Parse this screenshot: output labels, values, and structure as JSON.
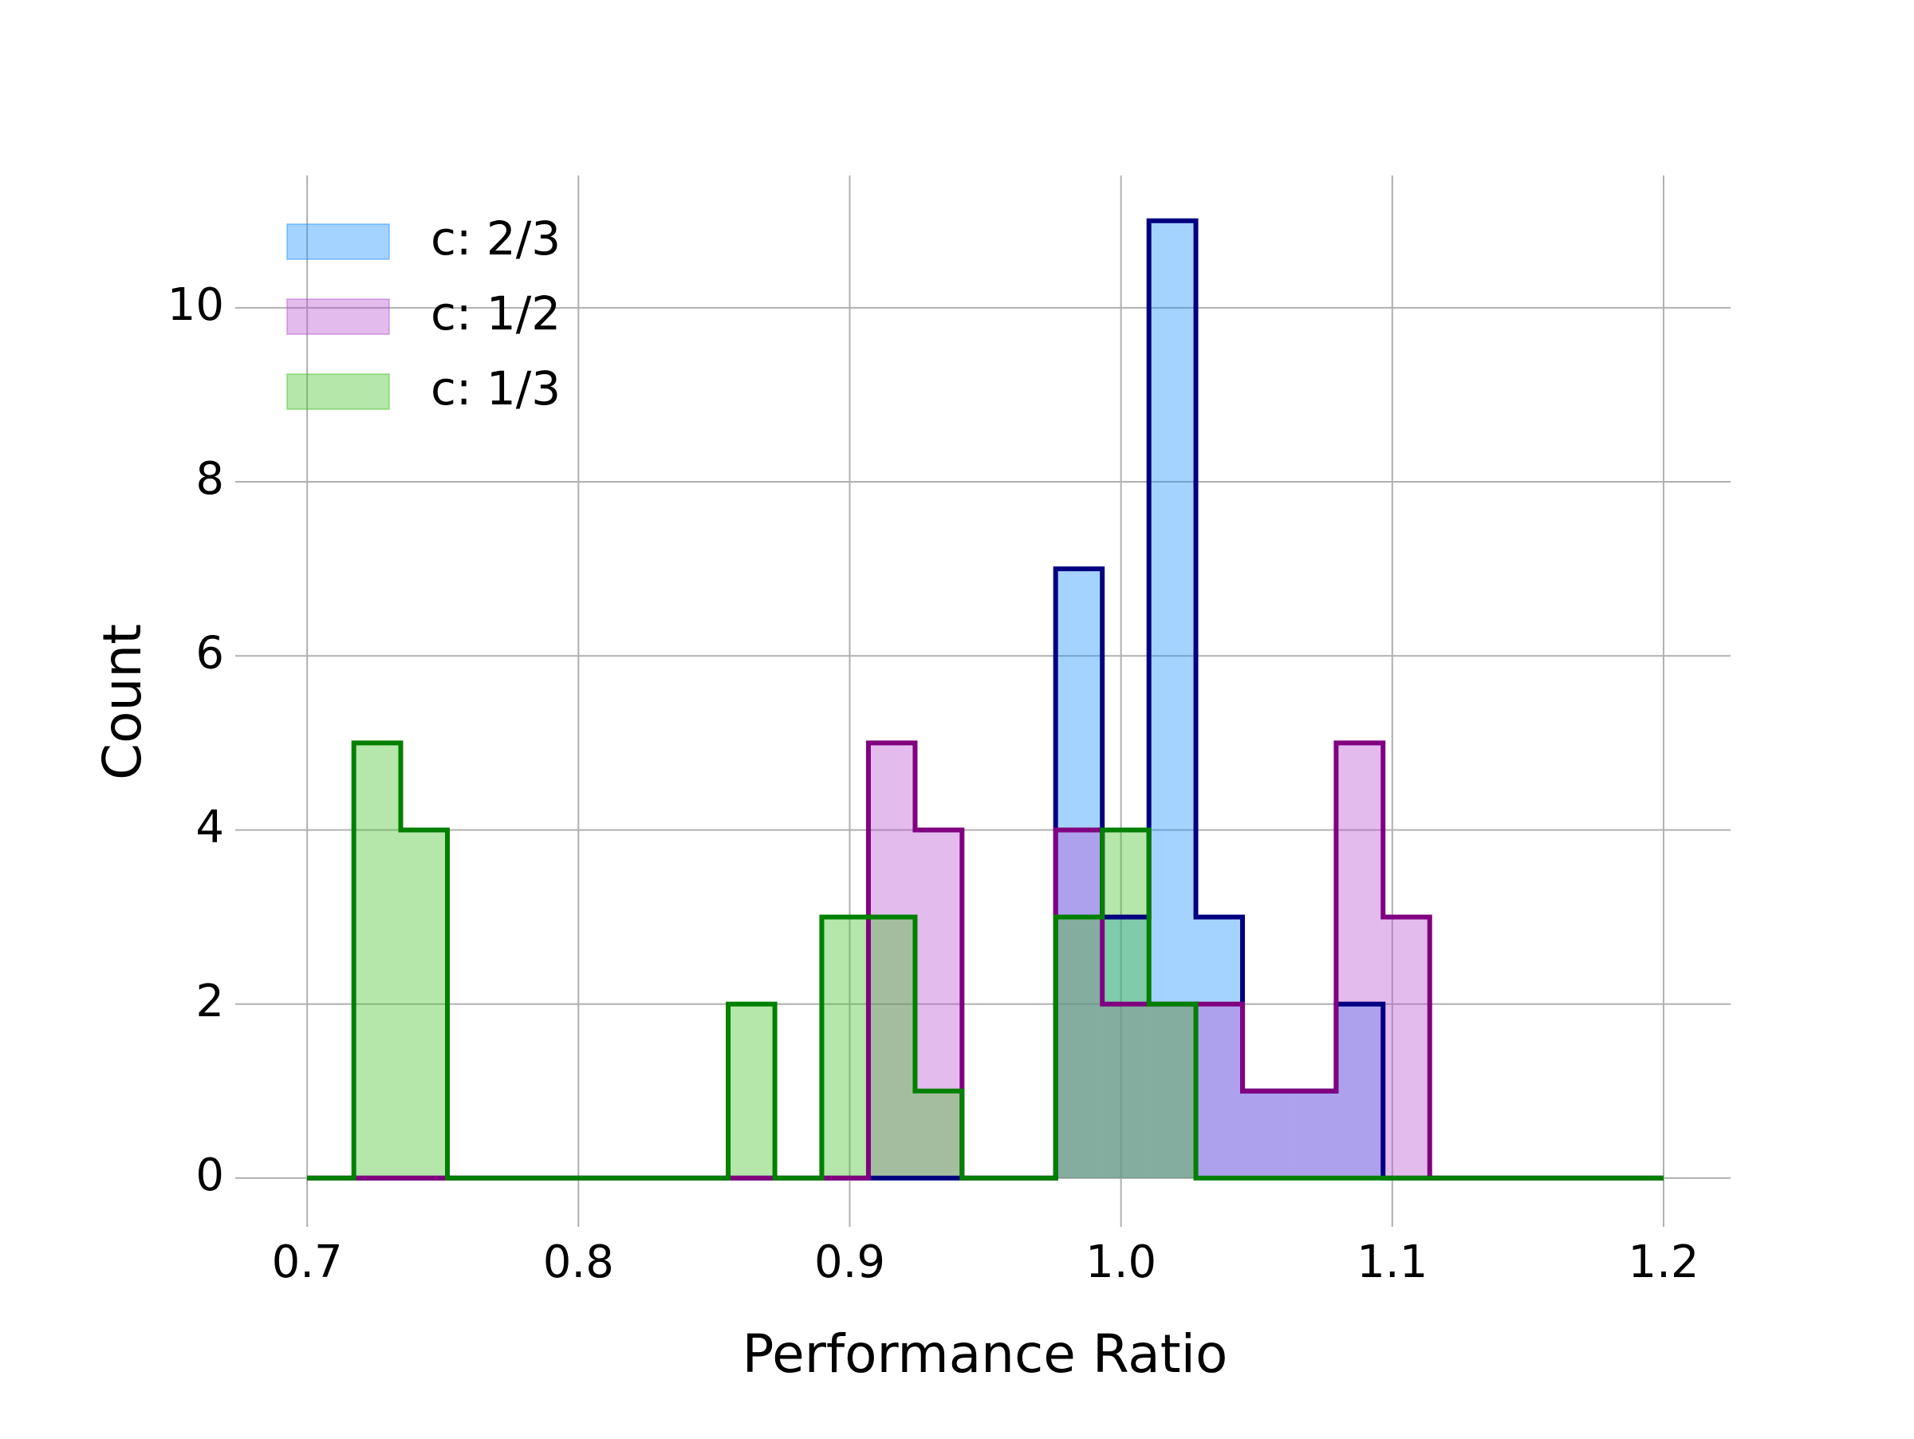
{
  "chart_data": {
    "type": "histogram",
    "x_label": "Performance Ratio",
    "y_label": "Count",
    "bins": [
      0.7,
      0.7172,
      0.7345,
      0.7517,
      0.769,
      0.7862,
      0.8034,
      0.8207,
      0.8379,
      0.8552,
      0.8724,
      0.8897,
      0.9069,
      0.9241,
      0.9414,
      0.9586,
      0.9759,
      0.9931,
      1.0103,
      1.0276,
      1.0448,
      1.0621,
      1.0793,
      1.0966,
      1.1138,
      1.131,
      1.1483,
      1.1655,
      1.1828,
      1.2
    ],
    "series": [
      {
        "name": "c: 2/3",
        "color": "#1e90ff",
        "edge_color": "#000080",
        "values": [
          0,
          0,
          0,
          0,
          0,
          0,
          0,
          0,
          0,
          0,
          0,
          0,
          0,
          0,
          0,
          0,
          7,
          3,
          11,
          3,
          1,
          1,
          2,
          0,
          0,
          0,
          0,
          0,
          0
        ]
      },
      {
        "name": "c: 1/2",
        "color": "#ba55d3",
        "edge_color": "#800080",
        "values": [
          0,
          0,
          0,
          0,
          0,
          0,
          0,
          0,
          0,
          0,
          0,
          0,
          5,
          4,
          0,
          0,
          4,
          2,
          2,
          2,
          1,
          1,
          5,
          3,
          0,
          0,
          0,
          0,
          0
        ]
      },
      {
        "name": "c: 1/3",
        "color": "#45c02a",
        "edge_color": "#008000",
        "values": [
          0,
          5,
          4,
          0,
          0,
          0,
          0,
          0,
          0,
          2,
          0,
          3,
          3,
          1,
          0,
          0,
          3,
          4,
          2,
          0,
          0,
          0,
          0,
          0,
          0,
          0,
          0,
          0,
          0
        ]
      }
    ],
    "fill_opacity": 0.4,
    "xlim": [
      0.6735,
      1.2247
    ],
    "ylim": [
      -0.56,
      11.52
    ],
    "xticks": [
      0.7,
      0.8,
      0.9,
      {
        "value": 1.0,
        "label": "1.0"
      },
      1.1,
      1.2
    ],
    "yticks": [
      0,
      2,
      4,
      6,
      8,
      10
    ],
    "grid": true,
    "legend": "upper left"
  }
}
